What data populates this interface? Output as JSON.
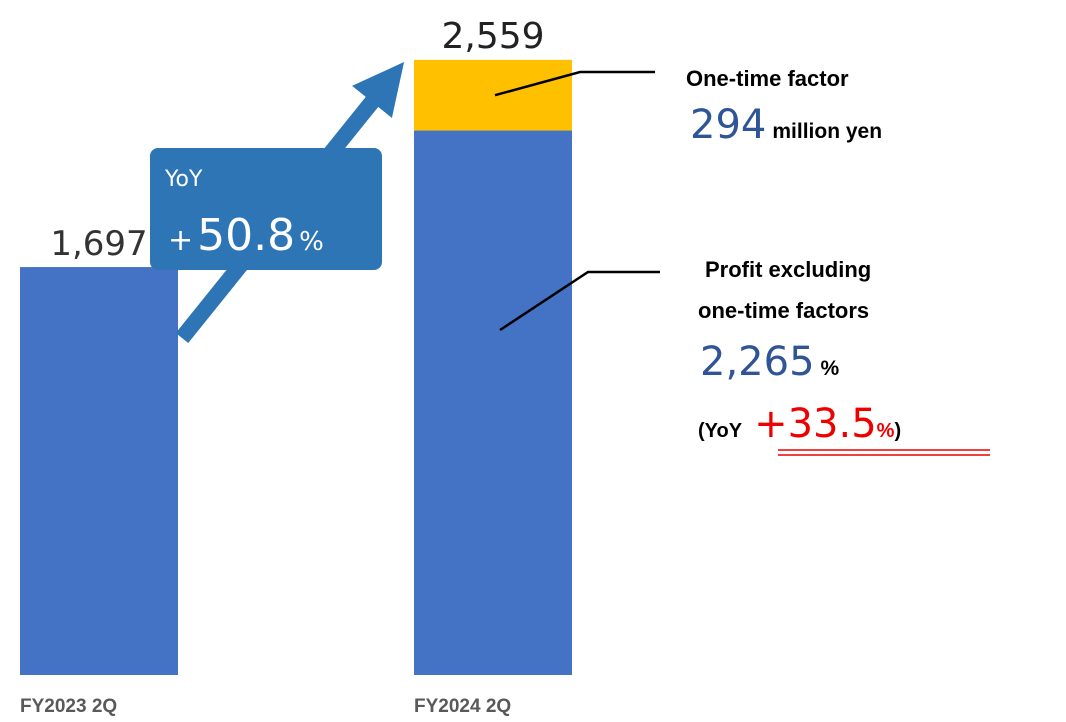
{
  "chart_data": {
    "type": "stacked_bar",
    "categories": [
      "FY2023 2Q",
      "FY2024 2Q"
    ],
    "series": [
      {
        "color": "#4472c4",
        "values": [
          1697,
          2265
        ],
        "value_labels": [
          "1,697",
          "2,265"
        ]
      },
      {
        "color": "#ffc000",
        "values": [
          null,
          294
        ]
      }
    ],
    "totals": [
      null,
      2559
    ],
    "total_labels": [
      null,
      "2,559"
    ],
    "ylim": [
      0,
      2600
    ],
    "annotations": {
      "yoy_total": {
        "label": "YoY",
        "sign": "+",
        "value": 50.8,
        "unit": "%"
      },
      "one_time": {
        "title": "One-time factor",
        "unit": "million yen"
      },
      "excluding": {
        "title_lines": [
          "Profit excluding",
          "one-time factors"
        ],
        "unit": "%",
        "prefix": "(YoY",
        "sign": "+",
        "value": 33.5,
        "suffix": ")"
      }
    }
  }
}
